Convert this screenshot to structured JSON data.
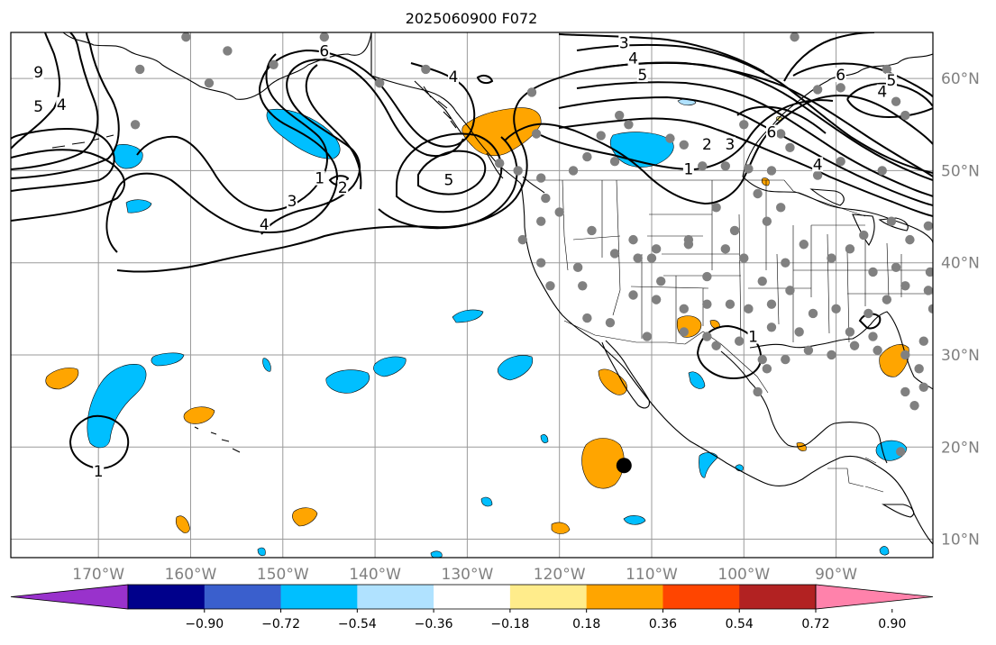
{
  "title": "2025060900 F072",
  "map": {
    "projection": "equirectangular",
    "lon_range": [
      -179.5,
      -79.5
    ],
    "lat_range": [
      8,
      65
    ],
    "gridlines": true,
    "lon_ticks": [
      {
        "lon": -170,
        "label": "170°W"
      },
      {
        "lon": -160,
        "label": "160°W"
      },
      {
        "lon": -150,
        "label": "150°W"
      },
      {
        "lon": -140,
        "label": "140°W"
      },
      {
        "lon": -130,
        "label": "130°W"
      },
      {
        "lon": -120,
        "label": "120°W"
      },
      {
        "lon": -110,
        "label": "110°W"
      },
      {
        "lon": -100,
        "label": "100°W"
      },
      {
        "lon": -90,
        "label": "90°W"
      }
    ],
    "lat_ticks": [
      {
        "lat": 10,
        "label": "10°N"
      },
      {
        "lat": 20,
        "label": "20°N"
      },
      {
        "lat": 30,
        "label": "30°N"
      },
      {
        "lat": 40,
        "label": "40°N"
      },
      {
        "lat": 50,
        "label": "50°N"
      },
      {
        "lat": 60,
        "label": "60°N"
      }
    ],
    "tick_label_color": "#808080"
  },
  "colorbar": {
    "colors": [
      "#9932cc",
      "#00008b",
      "#3a5fcd",
      "#00bfff",
      "#b0e2ff",
      "#ffffff",
      "#ffec8b",
      "#ffa500",
      "#ff4500",
      "#b22222",
      "#ff82ab"
    ],
    "boundaries": [
      -0.9,
      -0.72,
      -0.54,
      -0.36,
      -0.18,
      0.18,
      0.36,
      0.54,
      0.72,
      0.9
    ],
    "tick_labels": [
      "−0.90",
      "−0.72",
      "−0.54",
      "−0.36",
      "−0.18",
      "0.18",
      "0.36",
      "0.54",
      "0.72",
      "0.90"
    ],
    "extend": "both"
  },
  "contour_labels": [
    {
      "text": "9",
      "lon": -176.5,
      "lat": 60.5
    },
    {
      "text": "5",
      "lon": -176.5,
      "lat": 56.8
    },
    {
      "text": "4",
      "lon": -174,
      "lat": 57.0
    },
    {
      "text": "6",
      "lon": -145.5,
      "lat": 62.8
    },
    {
      "text": "4",
      "lon": -131.5,
      "lat": 60.0
    },
    {
      "text": "3",
      "lon": -113,
      "lat": 63.7
    },
    {
      "text": "4",
      "lon": -112,
      "lat": 62.0
    },
    {
      "text": "5",
      "lon": -111,
      "lat": 60.2
    },
    {
      "text": "6",
      "lon": -89.5,
      "lat": 60.2
    },
    {
      "text": "5",
      "lon": -84,
      "lat": 59.6
    },
    {
      "text": "4",
      "lon": -85,
      "lat": 58.4
    },
    {
      "text": "2",
      "lon": -104,
      "lat": 52.7
    },
    {
      "text": "3",
      "lon": -101.5,
      "lat": 52.7
    },
    {
      "text": "6",
      "lon": -97,
      "lat": 54.0
    },
    {
      "text": "1",
      "lon": -106,
      "lat": 50.0
    },
    {
      "text": "4",
      "lon": -92,
      "lat": 50.5
    },
    {
      "text": "1",
      "lon": -146,
      "lat": 49.0
    },
    {
      "text": "2",
      "lon": -143.5,
      "lat": 48.0
    },
    {
      "text": "5",
      "lon": -132,
      "lat": 48.8
    },
    {
      "text": "3",
      "lon": -149,
      "lat": 46.5
    },
    {
      "text": "4",
      "lon": -152,
      "lat": 44.0
    },
    {
      "text": "1",
      "lon": -99,
      "lat": 31.8
    },
    {
      "text": "1",
      "lon": -170,
      "lat": 17.2
    }
  ],
  "station_points_lonlat": [
    [
      -160.5,
      64.5
    ],
    [
      -165.5,
      61.0
    ],
    [
      -158,
      59.5
    ],
    [
      -156,
      63
    ],
    [
      -151,
      61.5
    ],
    [
      -145.5,
      64.5
    ],
    [
      -134.5,
      61
    ],
    [
      -139.5,
      59.5
    ],
    [
      -123,
      58.5
    ],
    [
      -166,
      55
    ],
    [
      -113.5,
      56
    ],
    [
      -122.5,
      54
    ],
    [
      -118.5,
      50
    ],
    [
      -117,
      51.5
    ],
    [
      -115.5,
      53.8
    ],
    [
      -114,
      51
    ],
    [
      -108,
      53.5
    ],
    [
      -106.5,
      52.8
    ],
    [
      -104.5,
      50.5
    ],
    [
      -102,
      50.5
    ],
    [
      -99.5,
      50.2
    ],
    [
      -97,
      50
    ],
    [
      -95,
      52.5
    ],
    [
      -96,
      54
    ],
    [
      -92,
      49.5
    ],
    [
      -89.5,
      51
    ],
    [
      -85,
      50
    ],
    [
      -82.5,
      56
    ],
    [
      -83.5,
      57.5
    ],
    [
      -84.5,
      61
    ],
    [
      -89.5,
      59
    ],
    [
      -94.5,
      64.5
    ],
    [
      -92,
      58.8
    ],
    [
      -100,
      55
    ],
    [
      -124.5,
      50
    ],
    [
      -126.5,
      50.8
    ],
    [
      -122,
      49.2
    ],
    [
      -121.5,
      47
    ],
    [
      -120,
      45.5
    ],
    [
      -122,
      44.5
    ],
    [
      -124,
      42.5
    ],
    [
      -116.5,
      43.5
    ],
    [
      -112,
      42.5
    ],
    [
      -109.5,
      41.5
    ],
    [
      -106,
      42.5
    ],
    [
      -110,
      40.5
    ],
    [
      -111.5,
      40.5
    ],
    [
      -114,
      41
    ],
    [
      -109,
      38
    ],
    [
      -104,
      38.5
    ],
    [
      -102,
      41.5
    ],
    [
      -101,
      43.5
    ],
    [
      -97.5,
      44.5
    ],
    [
      -96,
      46
    ],
    [
      -98.5,
      47.5
    ],
    [
      -103,
      46
    ],
    [
      -100,
      40.5
    ],
    [
      -98,
      38
    ],
    [
      -95.5,
      40
    ],
    [
      -93.5,
      42
    ],
    [
      -90.5,
      40.5
    ],
    [
      -88.5,
      41.5
    ],
    [
      -87,
      43
    ],
    [
      -84,
      44.5
    ],
    [
      -82,
      42.5
    ],
    [
      -80,
      44
    ],
    [
      -83.5,
      39.5
    ],
    [
      -86,
      39
    ],
    [
      -82.5,
      37.5
    ],
    [
      -80,
      37
    ],
    [
      -79.5,
      35
    ],
    [
      -84.5,
      36
    ],
    [
      -86.5,
      34.5
    ],
    [
      -88.5,
      32.5
    ],
    [
      -90,
      35
    ],
    [
      -92.5,
      34.5
    ],
    [
      -95,
      37
    ],
    [
      -97,
      35.5
    ],
    [
      -94,
      32.5
    ],
    [
      -97,
      33
    ],
    [
      -99.5,
      35
    ],
    [
      -101.5,
      35.5
    ],
    [
      -104,
      35.5
    ],
    [
      -106.5,
      35
    ],
    [
      -109.5,
      36
    ],
    [
      -112,
      36.5
    ],
    [
      -118,
      39.5
    ],
    [
      -117.5,
      37.5
    ],
    [
      -121,
      37.5
    ],
    [
      -122,
      40
    ],
    [
      -117,
      34
    ],
    [
      -114.5,
      33.5
    ],
    [
      -110.5,
      32
    ],
    [
      -106.5,
      32.5
    ],
    [
      -104,
      32
    ],
    [
      -100.5,
      31.5
    ],
    [
      -97.5,
      28.5
    ],
    [
      -95.5,
      29.5
    ],
    [
      -93,
      30.5
    ],
    [
      -90.5,
      30
    ],
    [
      -88,
      31
    ],
    [
      -85.5,
      30.5
    ],
    [
      -82.5,
      30
    ],
    [
      -81,
      28.5
    ],
    [
      -80.5,
      26.5
    ],
    [
      -81.5,
      24.5
    ],
    [
      -82.5,
      26
    ],
    [
      -86,
      32
    ],
    [
      -80.5,
      31.5
    ],
    [
      -98.5,
      26
    ],
    [
      -98,
      29.5
    ],
    [
      -103,
      31
    ],
    [
      -83,
      19.5
    ],
    [
      -106,
      42
    ],
    [
      -79.8,
      39
    ],
    [
      -112.5,
      55
    ]
  ],
  "highlight_point_lonlat": [
    -113,
    18
  ]
}
